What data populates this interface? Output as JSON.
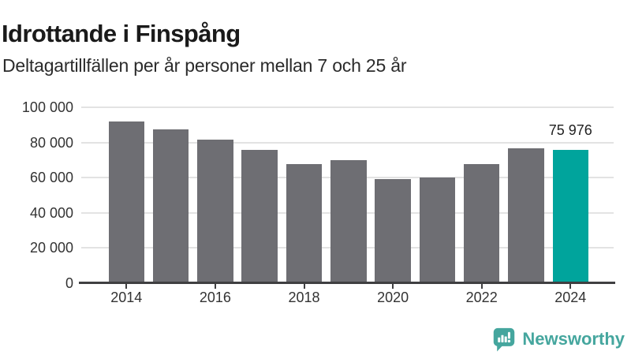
{
  "header": {
    "title": "Idrottande i Finspång",
    "subtitle": "Deltagartillfällen per år personer mellan 7 och 25 år"
  },
  "chart_data": {
    "type": "bar",
    "title": "Idrottande i Finspång",
    "subtitle": "Deltagartillfällen per år personer mellan 7 och 25 år",
    "categories": [
      "2014",
      "2015",
      "2016",
      "2017",
      "2018",
      "2019",
      "2020",
      "2021",
      "2022",
      "2023",
      "2024"
    ],
    "values": [
      91800,
      87300,
      81600,
      75700,
      67900,
      69900,
      59300,
      59900,
      67500,
      76600,
      75976
    ],
    "xlabel": "",
    "ylabel": "",
    "ylim": [
      0,
      100000
    ],
    "y_ticks": [
      0,
      20000,
      40000,
      60000,
      80000,
      100000
    ],
    "y_tick_labels": [
      "0",
      "20 000",
      "40 000",
      "60 000",
      "80 000",
      "100 000"
    ],
    "x_tick_labels": [
      "2014",
      "2016",
      "2018",
      "2020",
      "2022",
      "2024"
    ],
    "grid": true,
    "legend": false,
    "highlight": {
      "category": "2024",
      "label": "75 976"
    },
    "colors": {
      "bar": "#6e6e73",
      "highlight": "#00a49c",
      "grid": "#e3e3e3",
      "axis": "#3f3f41",
      "tick_text": "#333333"
    }
  },
  "footer": {
    "brand": "Newsworthy",
    "brand_color": "#45a69e",
    "logo_icon": "bar-chart-speech-bubble-icon"
  }
}
